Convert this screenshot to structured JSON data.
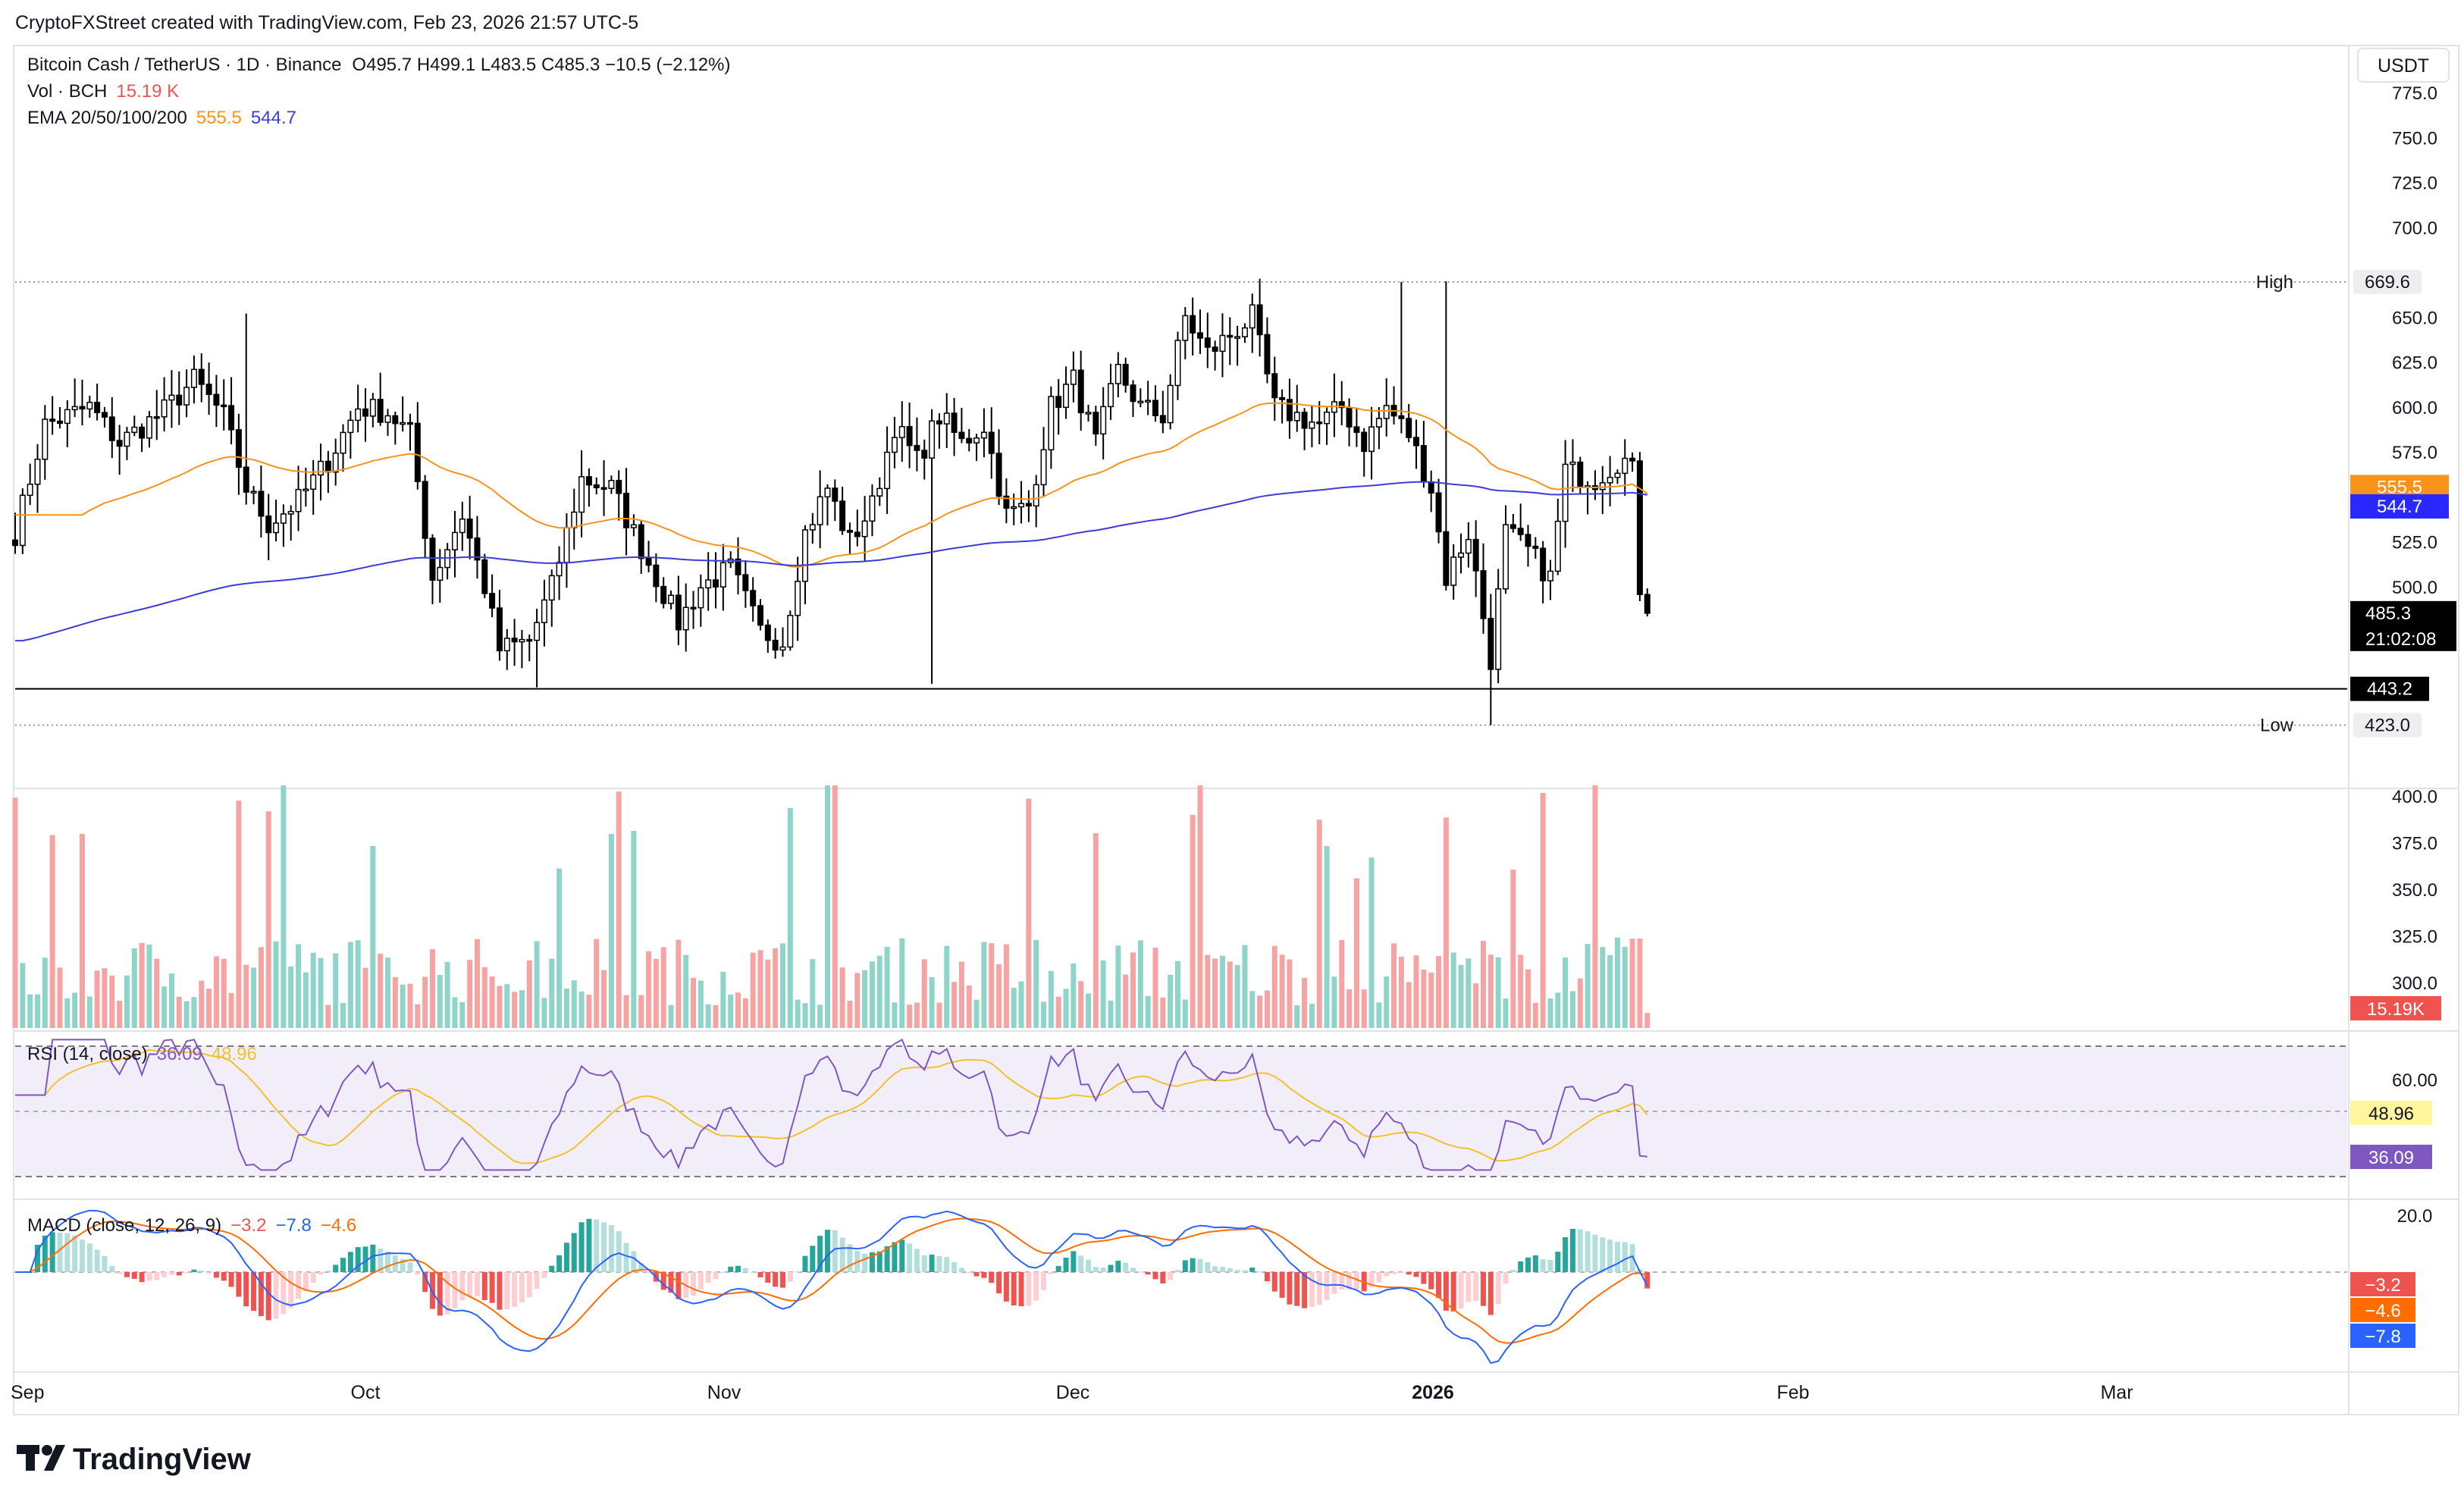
{
  "header": {
    "attribution": "CryptoFXStreet created with TradingView.com, Feb 23, 2026 21:57 UTC-5"
  },
  "legend": {
    "symbol": "Bitcoin Cash / TetherUS · 1D · Binance",
    "ohlc": "O495.7 H499.1 L483.5 C485.3 −10.5 (−2.12%)",
    "vol_label": "Vol · BCH",
    "vol_value": "15.19 K",
    "ema_label": "EMA 20/50/100/200",
    "ema_a": "555.5",
    "ema_b": "544.7"
  },
  "currency_button": "USDT",
  "price_axis": {
    "ticks": [
      "775.0",
      "750.0",
      "725.0",
      "700.0",
      "650.0",
      "625.0",
      "600.0",
      "575.0",
      "525.0",
      "500.0"
    ]
  },
  "volume_axis": {
    "ticks": [
      "400.0",
      "375.0",
      "350.0",
      "325.0",
      "300.0"
    ]
  },
  "rsi_axis": {
    "ticks": [
      "60.00"
    ]
  },
  "macd_axis": {
    "ticks": [
      "20.0"
    ]
  },
  "price_labels": {
    "high_text": "High",
    "high_value": "669.6",
    "low_text": "Low",
    "low_value": "423.0",
    "ema_a_tag": "555.5",
    "ema_b_tag": "544.7",
    "last_price": "485.3",
    "countdown": "21:02:08",
    "support_tag": "443.2",
    "volume_tag": "15.19K"
  },
  "rsi": {
    "label": "RSI (14, close)",
    "value": "36.09",
    "ma": "48.96",
    "tag_value": "36.09",
    "tag_ma": "48.96"
  },
  "macd": {
    "label": "MACD (close, 12, 26, 9)",
    "hist": "−3.2",
    "macd": "−7.8",
    "signal": "−4.6",
    "tag_hist": "−3.2",
    "tag_signal": "−4.6",
    "tag_macd": "−7.8"
  },
  "time_axis": [
    "Sep",
    "Oct",
    "Nov",
    "Dec",
    "2026",
    "Feb",
    "Mar"
  ],
  "footer": {
    "brand": "TradingView"
  },
  "colors": {
    "up": "#ffffff",
    "down": "#000000",
    "vol_up": "#8fd4c8",
    "vol_down": "#f5a3a3",
    "ema_a": "#f7931a",
    "ema_b": "#3c3cd8",
    "rsi": "#7e57c2",
    "rsi_ma": "#f2c12e",
    "macd": "#2962ff",
    "signal": "#ff6d00",
    "hist_up": "#26a69a",
    "hist_down": "#ef5350"
  },
  "chart_data": {
    "type": "candlestick",
    "title": "Bitcoin Cash / TetherUS · 1D · Binance",
    "time_range": [
      "2025-08-27",
      "2026-02-23"
    ],
    "ylim": [
      413,
      790
    ],
    "horizontal_levels": {
      "support": 443.2,
      "high": 669.6,
      "low": 423.0
    },
    "ohlc_keypoints": [
      {
        "t": 0,
        "c": 530
      },
      {
        "t": 4,
        "c": 590
      },
      {
        "t": 10,
        "c": 600
      },
      {
        "t": 14,
        "c": 580
      },
      {
        "t": 20,
        "c": 598
      },
      {
        "t": 24,
        "c": 615
      },
      {
        "t": 28,
        "c": 595
      },
      {
        "t": 31,
        "c": 555
      },
      {
        "t": 34,
        "c": 535
      },
      {
        "t": 38,
        "c": 548
      },
      {
        "t": 42,
        "c": 570
      },
      {
        "t": 46,
        "c": 600
      },
      {
        "t": 50,
        "c": 597
      },
      {
        "t": 53,
        "c": 585
      },
      {
        "t": 56,
        "c": 505
      },
      {
        "t": 60,
        "c": 540
      },
      {
        "t": 63,
        "c": 500
      },
      {
        "t": 65,
        "c": 465
      },
      {
        "t": 69,
        "c": 470
      },
      {
        "t": 72,
        "c": 500
      },
      {
        "t": 76,
        "c": 560
      },
      {
        "t": 80,
        "c": 555
      },
      {
        "t": 83,
        "c": 530
      },
      {
        "t": 86,
        "c": 505
      },
      {
        "t": 89,
        "c": 480
      },
      {
        "t": 92,
        "c": 500
      },
      {
        "t": 96,
        "c": 510
      },
      {
        "t": 100,
        "c": 475
      },
      {
        "t": 103,
        "c": 470
      },
      {
        "t": 106,
        "c": 530
      },
      {
        "t": 109,
        "c": 555
      },
      {
        "t": 112,
        "c": 525
      },
      {
        "t": 115,
        "c": 545
      },
      {
        "t": 118,
        "c": 590
      },
      {
        "t": 121,
        "c": 570
      },
      {
        "t": 124,
        "c": 595
      },
      {
        "t": 127,
        "c": 580
      },
      {
        "t": 130,
        "c": 590
      },
      {
        "t": 133,
        "c": 540
      },
      {
        "t": 136,
        "c": 545
      },
      {
        "t": 139,
        "c": 600
      },
      {
        "t": 142,
        "c": 615
      },
      {
        "t": 145,
        "c": 580
      },
      {
        "t": 148,
        "c": 620
      },
      {
        "t": 151,
        "c": 600
      },
      {
        "t": 154,
        "c": 595
      },
      {
        "t": 157,
        "c": 650
      },
      {
        "t": 160,
        "c": 630
      },
      {
        "t": 163,
        "c": 640
      },
      {
        "t": 166,
        "c": 650
      },
      {
        "t": 169,
        "c": 600
      },
      {
        "t": 172,
        "c": 595
      },
      {
        "t": 175,
        "c": 590
      },
      {
        "t": 178,
        "c": 600
      },
      {
        "t": 181,
        "c": 580
      },
      {
        "t": 184,
        "c": 600
      },
      {
        "t": 187,
        "c": 585
      },
      {
        "t": 190,
        "c": 555
      },
      {
        "t": 192,
        "c": 505
      },
      {
        "t": 195,
        "c": 530
      },
      {
        "t": 198,
        "c": 460
      },
      {
        "t": 200,
        "c": 530
      },
      {
        "t": 203,
        "c": 520
      },
      {
        "t": 206,
        "c": 505
      },
      {
        "t": 208,
        "c": 565
      },
      {
        "t": 212,
        "c": 560
      },
      {
        "t": 215,
        "c": 570
      },
      {
        "t": 217,
        "c": 570
      },
      {
        "t": 218,
        "c": 495.7
      },
      {
        "t": 219,
        "c": 485.3
      }
    ],
    "series": [
      {
        "name": "EMA 20/50/100/200",
        "last": 555.5
      },
      {
        "name": "EMA 20/50/100/200",
        "last": 544.7
      },
      {
        "name": "Vol · BCH",
        "last": "15.19 K"
      },
      {
        "name": "RSI (14, close)",
        "last": 36.09,
        "ma_last": 48.96
      },
      {
        "name": "MACD (close, 12, 26, 9)",
        "hist": -3.2,
        "macd": -7.8,
        "signal": -4.6
      }
    ],
    "xlabel": "",
    "ylabel": "",
    "legend_position": "top-left",
    "grid": false
  }
}
